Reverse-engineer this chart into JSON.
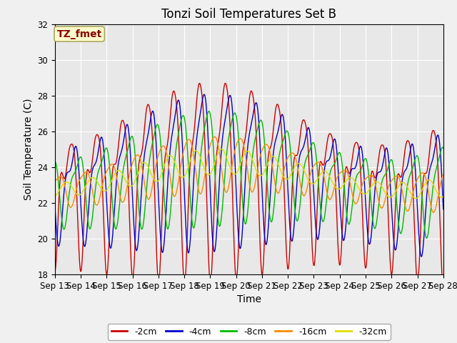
{
  "title": "Tonzi Soil Temperatures Set B",
  "xlabel": "Time",
  "ylabel": "Soil Temperature (C)",
  "ylim": [
    18,
    32
  ],
  "x_tick_labels": [
    "Sep 13",
    "Sep 14",
    "Sep 15",
    "Sep 16",
    "Sep 17",
    "Sep 18",
    "Sep 19",
    "Sep 20",
    "Sep 21",
    "Sep 22",
    "Sep 23",
    "Sep 24",
    "Sep 25",
    "Sep 26",
    "Sep 27",
    "Sep 28"
  ],
  "series_colors": [
    "#cc0000",
    "#0000cc",
    "#00bb00",
    "#ff8800",
    "#dddd00"
  ],
  "series_labels": [
    "-2cm",
    "-4cm",
    "-8cm",
    "-16cm",
    "-32cm"
  ],
  "annotation_text": "TZ_fmet",
  "annotation_color": "#880000",
  "annotation_bg": "#ffffcc",
  "plot_bg": "#e8e8e8",
  "fig_bg": "#f0f0f0",
  "grid_color": "#ffffff",
  "title_fontsize": 12,
  "axis_fontsize": 10,
  "tick_fontsize": 8.5
}
